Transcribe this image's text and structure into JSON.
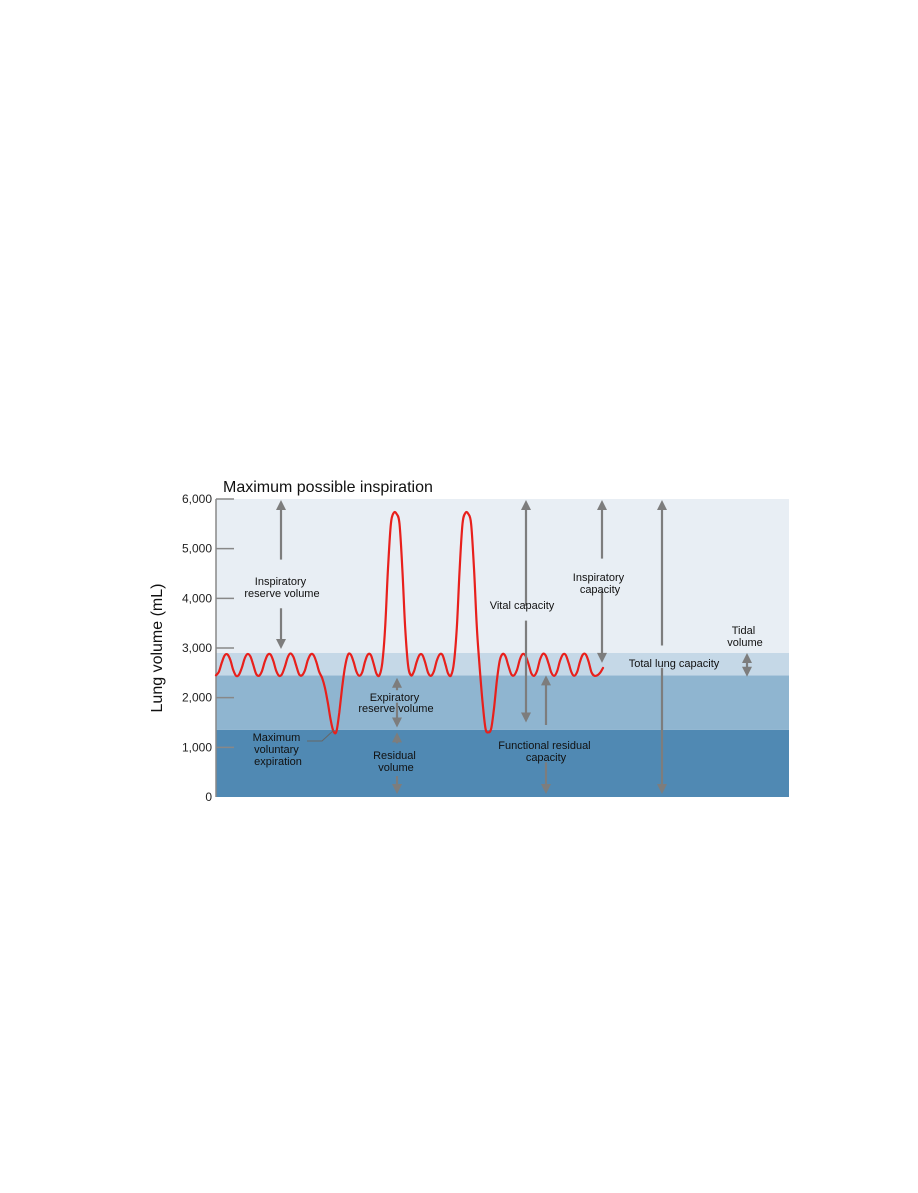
{
  "chart_data": {
    "type": "line",
    "title": "Maximum possible inspiration",
    "xlabel": "",
    "ylabel": "Lung volume (mL)",
    "ylim": [
      0,
      6000
    ],
    "grid": false,
    "y_ticks": [
      {
        "value": 0,
        "label": "0"
      },
      {
        "value": 1000,
        "label": "1,000"
      },
      {
        "value": 2000,
        "label": "2,000"
      },
      {
        "value": 3000,
        "label": "3,000"
      },
      {
        "value": 4000,
        "label": "4,000"
      },
      {
        "value": 5000,
        "label": "5,000"
      },
      {
        "value": 6000,
        "label": "6,000"
      }
    ],
    "bands": [
      {
        "name": "residual",
        "from": 0,
        "to": 1350,
        "color": "#5089b3"
      },
      {
        "name": "expiratory-reserve",
        "from": 1350,
        "to": 2450,
        "color": "#8fb5d0"
      },
      {
        "name": "tidal",
        "from": 2450,
        "to": 2900,
        "color": "#c5d8e7"
      },
      {
        "name": "inspiratory-reserve",
        "from": 2900,
        "to": 6000,
        "color": "#e8eef4"
      }
    ],
    "series": [
      {
        "color": "#e8201c",
        "x": [
          0.0,
          0.5,
          1.0,
          1.5,
          2.0,
          2.5,
          3.0,
          3.5,
          4.0,
          4.5,
          5.0,
          5.5,
          6.0,
          6.5,
          7.0,
          7.5,
          8.0,
          8.5,
          9.0,
          9.5,
          10.0,
          10.5,
          11.0,
          11.5,
          12.0,
          12.5,
          13.0,
          13.5,
          14.0,
          14.5,
          15.0,
          15.5,
          16.0,
          16.5,
          17.0,
          17.5,
          18.0,
          18.5,
          19.0,
          19.5,
          20.0,
          20.5,
          21.0,
          21.5,
          22.0,
          22.5,
          23.0,
          23.5,
          24.0,
          24.5,
          25.0,
          25.5,
          26.0,
          26.5,
          27.0,
          27.5,
          28.0,
          28.5,
          29.0,
          29.5,
          30.0,
          30.5,
          31.0,
          31.5,
          32.0,
          32.5,
          33.0,
          33.5,
          34.0,
          34.5,
          35.0,
          35.5,
          36.0,
          36.5,
          37.0,
          37.5,
          38.0,
          38.5,
          39.0,
          39.5,
          40.0,
          40.5,
          41.0,
          41.5,
          42.0,
          42.5,
          43.0,
          43.5,
          44.0,
          44.5,
          45.0,
          45.5,
          46.0,
          46.5,
          47.0,
          47.5,
          48.0,
          48.5,
          49.0,
          49.5,
          50.0,
          50.5,
          51.0,
          51.5,
          52.0,
          52.5,
          53.0,
          53.5,
          54.0,
          54.5,
          55.0,
          55.5,
          56.0,
          56.5,
          57.0,
          57.5,
          58.0,
          58.5,
          59.0,
          59.5,
          60.0,
          60.5,
          61.0,
          61.5,
          62.0,
          62.5,
          63.0,
          63.5,
          64.0,
          64.5,
          65.0,
          65.5,
          66.0,
          66.5,
          67.0,
          67.5
        ],
        "values": [
          2450,
          2520,
          2700,
          2850,
          2870,
          2760,
          2560,
          2440,
          2460,
          2600,
          2790,
          2880,
          2830,
          2660,
          2480,
          2440,
          2530,
          2720,
          2860,
          2870,
          2740,
          2540,
          2440,
          2470,
          2620,
          2810,
          2890,
          2820,
          2640,
          2470,
          2450,
          2550,
          2750,
          2870,
          2860,
          2720,
          2520,
          2400,
          2200,
          1900,
          1550,
          1320,
          1320,
          1700,
          2200,
          2620,
          2860,
          2870,
          2720,
          2520,
          2440,
          2510,
          2730,
          2870,
          2860,
          2680,
          2480,
          2450,
          2700,
          3400,
          4600,
          5500,
          5720,
          5700,
          5500,
          4600,
          3400,
          2650,
          2450,
          2520,
          2720,
          2860,
          2860,
          2700,
          2500,
          2440,
          2530,
          2740,
          2870,
          2860,
          2680,
          2480,
          2450,
          2700,
          3400,
          4600,
          5500,
          5720,
          5700,
          5500,
          4600,
          3400,
          2600,
          1900,
          1380,
          1300,
          1380,
          1800,
          2350,
          2750,
          2880,
          2830,
          2640,
          2470,
          2450,
          2560,
          2770,
          2880,
          2840,
          2680,
          2490,
          2440,
          2540,
          2760,
          2880,
          2850,
          2690,
          2500,
          2440,
          2530,
          2740,
          2870,
          2860,
          2700,
          2510,
          2440,
          2520,
          2730,
          2870,
          2870,
          2720,
          2510,
          2440,
          2450,
          2500,
          2600
        ]
      }
    ],
    "labels": {
      "irv": [
        "Inspiratory",
        "reserve volume"
      ],
      "vital": "Vital capacity",
      "ic": [
        "Inspiratory",
        "capacity"
      ],
      "tidal": [
        "Tidal",
        "volume"
      ],
      "tlc": "Total lung capacity",
      "erv": [
        "Expiratory",
        "reserve volume"
      ],
      "mve": [
        "Maximum",
        "voluntary",
        "expiration"
      ],
      "rv": [
        "Residual",
        "volume"
      ],
      "frc": [
        "Functional residual",
        "capacity"
      ]
    }
  }
}
